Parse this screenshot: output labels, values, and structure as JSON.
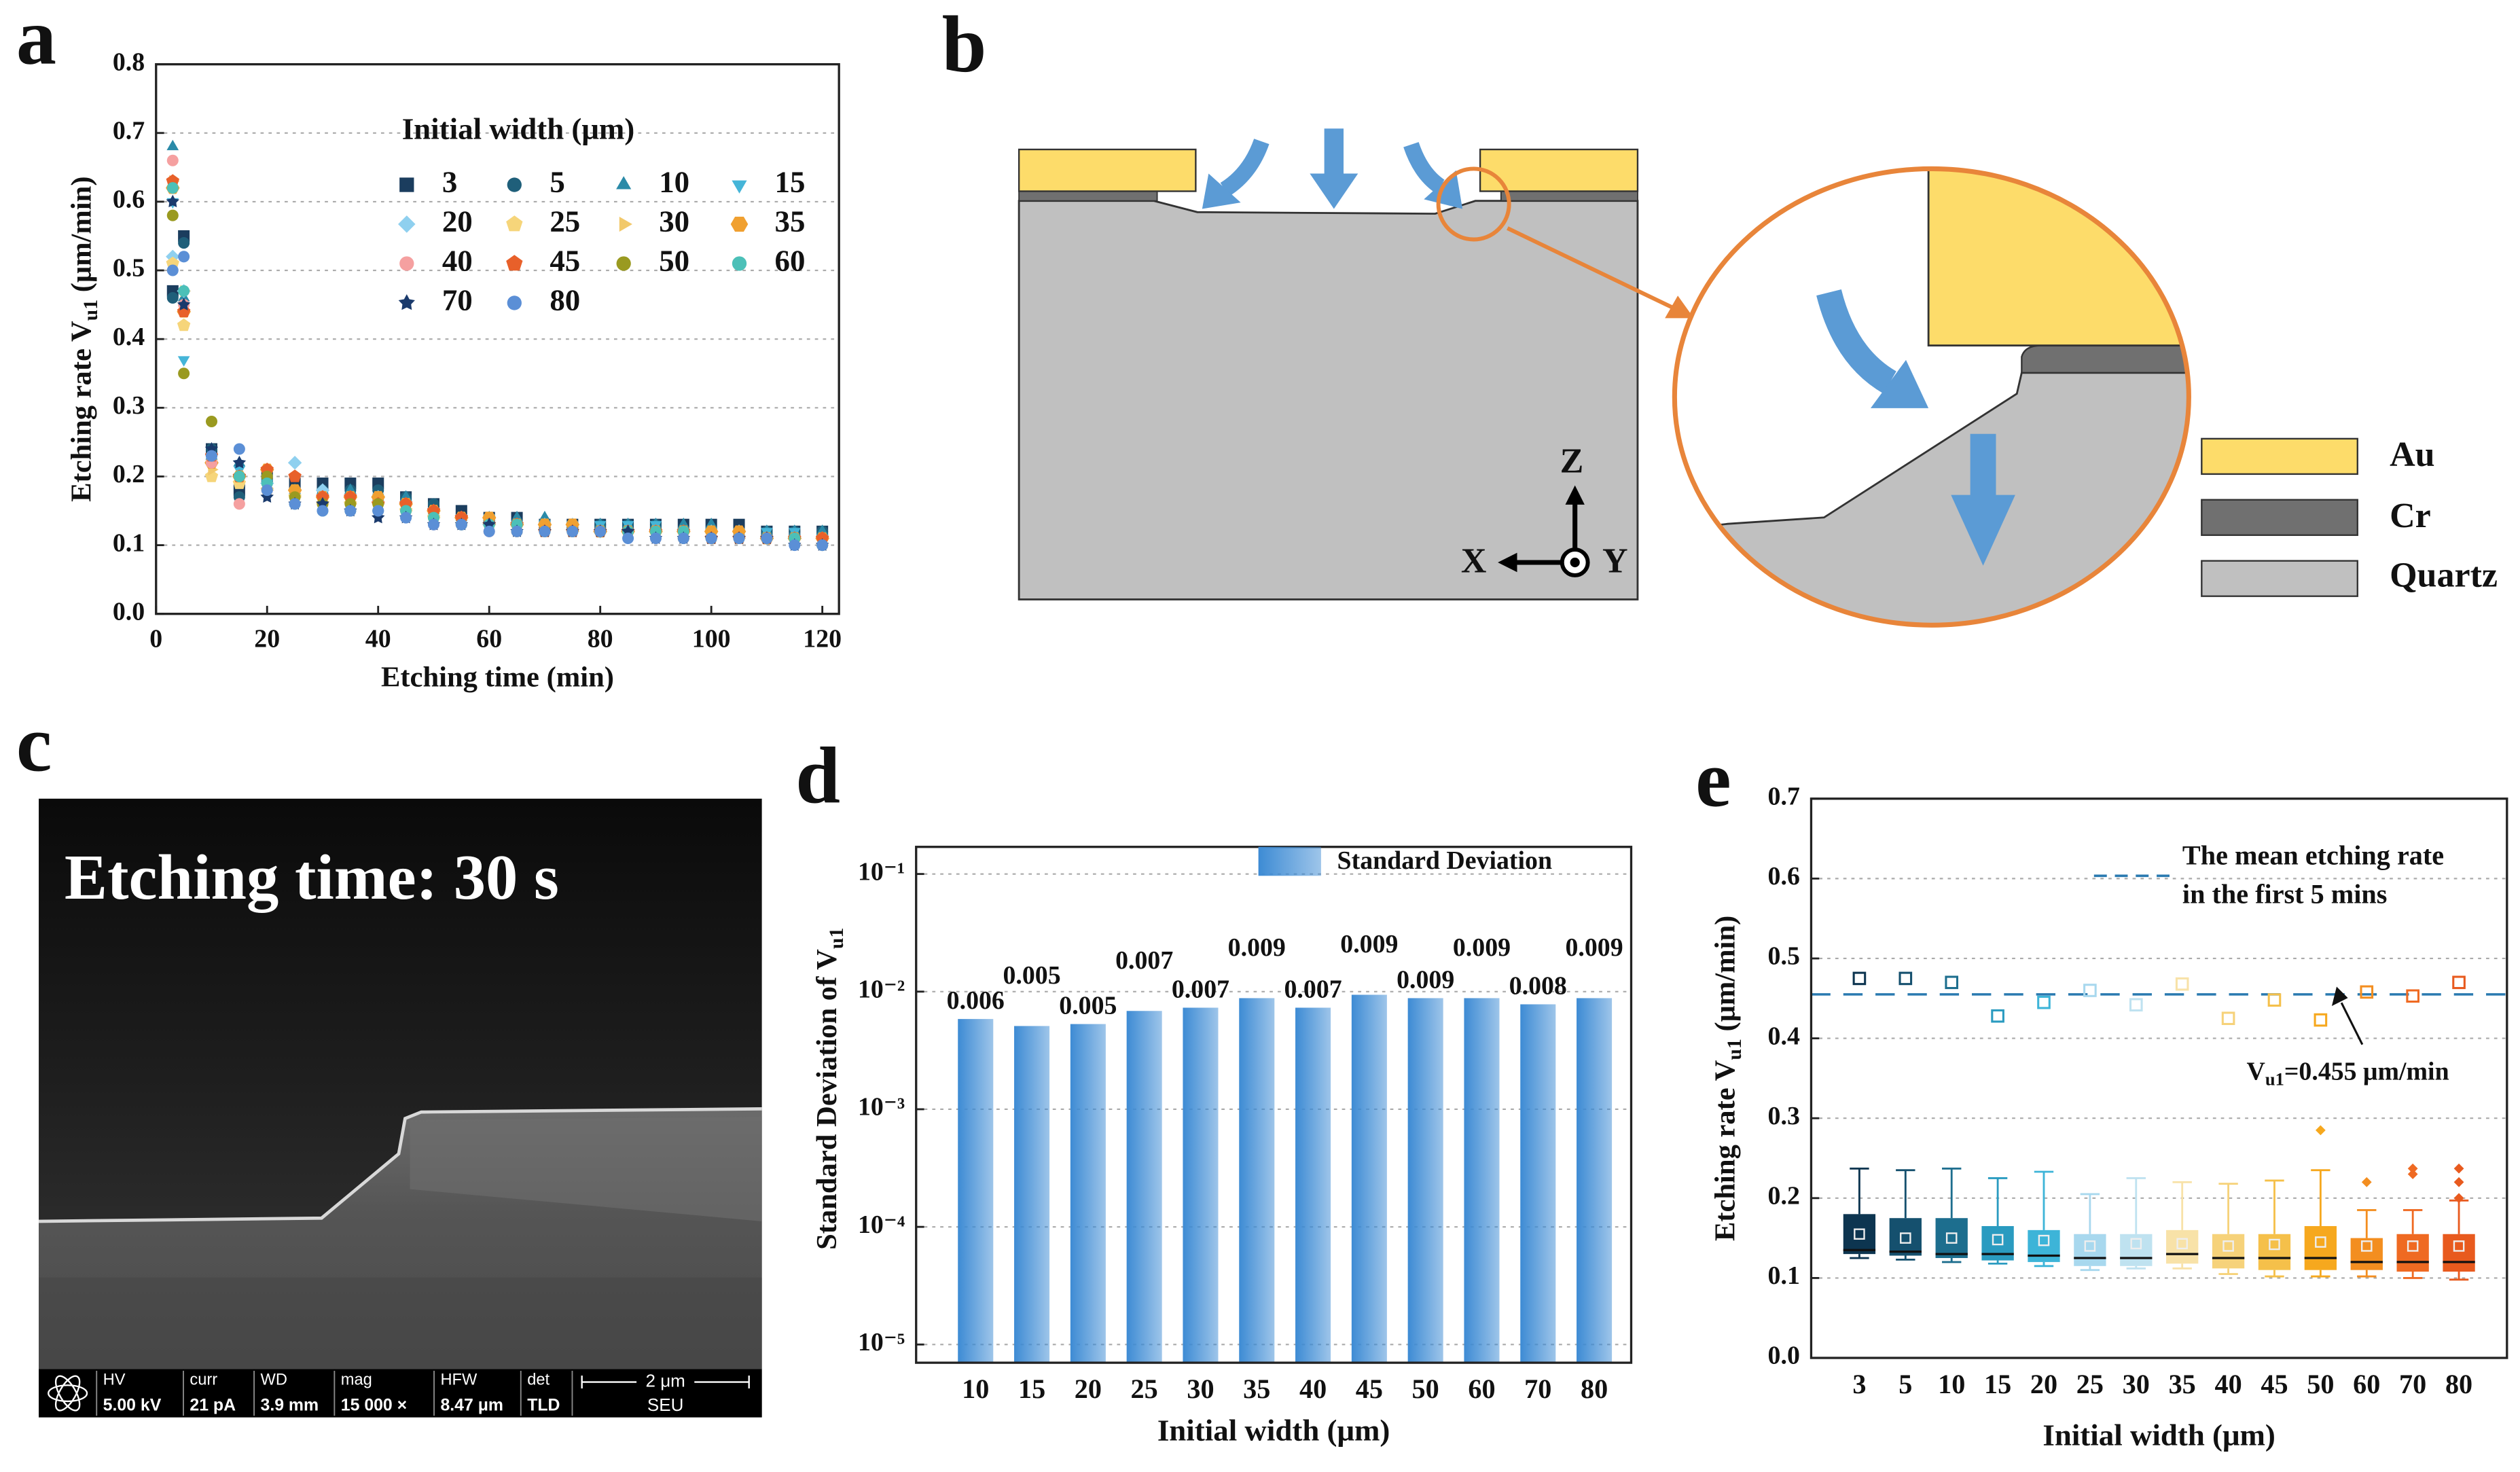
{
  "chart_data": [
    {
      "panel_label": "a",
      "type": "scatter",
      "xlabel": "Etching time (min)",
      "ylabel": [
        "Etching rate V",
        "u1",
        " (μm/min)"
      ],
      "legend_title": "Initial width (μm)",
      "x": [
        3,
        5,
        10,
        15,
        20,
        25,
        30,
        35,
        40,
        45,
        50,
        55,
        60,
        65,
        70,
        75,
        80,
        85,
        90,
        95,
        100,
        105,
        110,
        115,
        120
      ],
      "xlim": [
        0,
        123
      ],
      "xticks": [
        0,
        20,
        40,
        60,
        80,
        100,
        120
      ],
      "ylim": [
        0,
        0.8
      ],
      "yticks": [
        {
          "value": 0,
          "label": "0.0"
        },
        0.1,
        0.2,
        0.3,
        0.4,
        0.5,
        0.6,
        0.7,
        0.8
      ],
      "grid": true,
      "series": [
        {
          "name": "3",
          "color": "#1b3d5e",
          "marker": "square",
          "values": [
            0.47,
            0.55,
            0.24,
            0.18,
            0.2,
            0.19,
            0.19,
            0.19,
            0.19,
            0.17,
            0.16,
            0.15,
            0.14,
            0.14,
            0.13,
            0.13,
            0.13,
            0.13,
            0.13,
            0.13,
            0.13,
            0.13,
            0.12,
            0.12,
            0.12
          ]
        },
        {
          "name": "5",
          "color": "#1f5f7a",
          "marker": "circle",
          "values": [
            0.46,
            0.54,
            0.24,
            0.17,
            0.19,
            0.18,
            0.18,
            0.18,
            0.18,
            0.17,
            0.16,
            0.14,
            0.14,
            0.13,
            0.13,
            0.13,
            0.13,
            0.13,
            0.13,
            0.12,
            0.12,
            0.12,
            0.12,
            0.12,
            0.12
          ]
        },
        {
          "name": "10",
          "color": "#2a8aa8",
          "marker": "triangle-up",
          "values": [
            0.68,
            0.46,
            0.23,
            0.22,
            0.2,
            0.18,
            0.18,
            0.18,
            0.17,
            0.17,
            0.15,
            0.14,
            0.14,
            0.14,
            0.14,
            0.13,
            0.13,
            0.13,
            0.13,
            0.13,
            0.13,
            0.12,
            0.12,
            0.12,
            0.12
          ]
        },
        {
          "name": "15",
          "color": "#45b5d8",
          "marker": "triangle-down",
          "values": [
            0.6,
            0.37,
            0.22,
            0.21,
            0.19,
            0.17,
            0.17,
            0.17,
            0.17,
            0.16,
            0.15,
            0.14,
            0.14,
            0.13,
            0.13,
            0.13,
            0.13,
            0.13,
            0.13,
            0.12,
            0.12,
            0.12,
            0.12,
            0.12,
            0.11
          ]
        },
        {
          "name": "20",
          "color": "#8fd0ef",
          "marker": "diamond",
          "values": [
            0.52,
            0.47,
            0.22,
            0.2,
            0.19,
            0.22,
            0.18,
            0.17,
            0.17,
            0.16,
            0.15,
            0.14,
            0.13,
            0.13,
            0.13,
            0.13,
            0.12,
            0.12,
            0.12,
            0.12,
            0.12,
            0.12,
            0.11,
            0.11,
            0.11
          ]
        },
        {
          "name": "25",
          "color": "#f6d57a",
          "marker": "pentagon",
          "values": [
            0.51,
            0.42,
            0.2,
            0.19,
            0.18,
            0.17,
            0.16,
            0.16,
            0.16,
            0.15,
            0.14,
            0.14,
            0.13,
            0.13,
            0.12,
            0.12,
            0.12,
            0.12,
            0.12,
            0.12,
            0.11,
            0.11,
            0.11,
            0.11,
            0.11
          ]
        },
        {
          "name": "30",
          "color": "#f2c96b",
          "marker": "triangle-right",
          "values": [
            0.63,
            0.47,
            0.21,
            0.2,
            0.18,
            0.17,
            0.17,
            0.16,
            0.16,
            0.15,
            0.14,
            0.14,
            0.13,
            0.13,
            0.13,
            0.12,
            0.12,
            0.12,
            0.12,
            0.12,
            0.12,
            0.11,
            0.11,
            0.11,
            0.11
          ]
        },
        {
          "name": "35",
          "color": "#f0a030",
          "marker": "hexagon",
          "values": [
            0.62,
            0.44,
            0.22,
            0.2,
            0.21,
            0.18,
            0.17,
            0.17,
            0.17,
            0.16,
            0.15,
            0.14,
            0.14,
            0.13,
            0.13,
            0.13,
            0.12,
            0.12,
            0.12,
            0.12,
            0.12,
            0.12,
            0.11,
            0.11,
            0.11
          ]
        },
        {
          "name": "40",
          "color": "#f5a0a0",
          "marker": "circle",
          "values": [
            0.66,
            0.45,
            0.22,
            0.16,
            0.18,
            0.16,
            0.16,
            0.15,
            0.15,
            0.15,
            0.13,
            0.13,
            0.12,
            0.12,
            0.12,
            0.12,
            0.12,
            0.12,
            0.11,
            0.11,
            0.11,
            0.11,
            0.11,
            0.11,
            0.1
          ]
        },
        {
          "name": "45",
          "color": "#e8602a",
          "marker": "pentagon",
          "values": [
            0.63,
            0.44,
            0.23,
            0.2,
            0.21,
            0.2,
            0.17,
            0.17,
            0.16,
            0.16,
            0.15,
            0.14,
            0.13,
            0.13,
            0.12,
            0.12,
            0.12,
            0.12,
            0.12,
            0.12,
            0.11,
            0.11,
            0.11,
            0.11,
            0.11
          ]
        },
        {
          "name": "50",
          "color": "#9a9a20",
          "marker": "circle",
          "values": [
            0.58,
            0.35,
            0.28,
            0.2,
            0.2,
            0.17,
            0.16,
            0.16,
            0.16,
            0.15,
            0.14,
            0.13,
            0.13,
            0.12,
            0.12,
            0.12,
            0.12,
            0.12,
            0.12,
            0.11,
            0.11,
            0.11,
            0.11,
            0.11,
            0.1
          ]
        },
        {
          "name": "60",
          "color": "#4cc0b8",
          "marker": "circle",
          "values": [
            0.62,
            0.47,
            0.23,
            0.2,
            0.19,
            0.16,
            0.15,
            0.15,
            0.15,
            0.15,
            0.14,
            0.13,
            0.13,
            0.13,
            0.12,
            0.12,
            0.12,
            0.12,
            0.12,
            0.12,
            0.11,
            0.11,
            0.11,
            0.11,
            0.1
          ]
        },
        {
          "name": "70",
          "color": "#1a3a6c",
          "marker": "star",
          "values": [
            0.6,
            0.45,
            0.24,
            0.22,
            0.17,
            0.16,
            0.16,
            0.15,
            0.14,
            0.14,
            0.13,
            0.13,
            0.13,
            0.12,
            0.12,
            0.12,
            0.12,
            0.12,
            0.11,
            0.11,
            0.11,
            0.11,
            0.11,
            0.1,
            0.1
          ]
        },
        {
          "name": "80",
          "color": "#5b8fd6",
          "marker": "circle",
          "values": [
            0.5,
            0.52,
            0.23,
            0.24,
            0.18,
            0.16,
            0.15,
            0.15,
            0.15,
            0.14,
            0.13,
            0.13,
            0.12,
            0.12,
            0.12,
            0.12,
            0.12,
            0.11,
            0.11,
            0.11,
            0.11,
            0.11,
            0.11,
            0.1,
            0.1
          ]
        }
      ]
    },
    {
      "panel_label": "d",
      "type": "bar",
      "log_scale": true,
      "xlabel": "Initial width (μm)",
      "ylabel": [
        "Standard Deviation of  V",
        "u1"
      ],
      "legend": "Standard Deviation",
      "color": "#3d8bd4",
      "categories": [
        "10",
        "15",
        "20",
        "25",
        "30",
        "35",
        "40",
        "45",
        "50",
        "60",
        "70",
        "80"
      ],
      "values": [
        0.00585,
        0.0051,
        0.0053,
        0.00685,
        0.0073,
        0.0088,
        0.0073,
        0.0094,
        0.0088,
        0.0088,
        0.0078,
        0.0088
      ],
      "value_labels": [
        "0.006",
        "0.005",
        "0.005",
        "0.007",
        "0.007",
        "0.009",
        "0.007",
        "0.009",
        "0.009",
        "0.009",
        "0.008",
        "0.009"
      ],
      "ylim": [
        7e-06,
        0.17
      ],
      "yticks": [
        {
          "value": 1e-05,
          "label": "10⁻⁵"
        },
        {
          "value": 0.0001,
          "label": "10⁻⁴"
        },
        {
          "value": 0.001,
          "label": "10⁻³"
        },
        {
          "value": 0.01,
          "label": "10⁻²"
        },
        {
          "value": 0.1,
          "label": "10⁻¹"
        }
      ],
      "grid": true
    },
    {
      "panel_label": "e",
      "type": "box",
      "xlabel": "Initial width (μm)",
      "ylabel": [
        "Etching rate V",
        "u1",
        " (μm/min)"
      ],
      "categories": [
        "3",
        "5",
        "10",
        "15",
        "20",
        "25",
        "30",
        "35",
        "40",
        "45",
        "50",
        "60",
        "70",
        "80"
      ],
      "colors": [
        "#0d3550",
        "#15506e",
        "#1d6e8e",
        "#2a9bc0",
        "#3db4d8",
        "#a8d8ee",
        "#bfe2f0",
        "#f8e2a8",
        "#f6d27a",
        "#f5c04a",
        "#f6a81e",
        "#f38e20",
        "#ef6a22",
        "#e85a1e"
      ],
      "boxes": [
        {
          "whislo": 0.125,
          "q1": 0.13,
          "median": 0.135,
          "q3": 0.18,
          "whishi": 0.237,
          "mean": 0.155,
          "fliers": []
        },
        {
          "whislo": 0.123,
          "q1": 0.128,
          "median": 0.133,
          "q3": 0.175,
          "whishi": 0.235,
          "mean": 0.15,
          "fliers": []
        },
        {
          "whislo": 0.12,
          "q1": 0.125,
          "median": 0.13,
          "q3": 0.175,
          "whishi": 0.237,
          "mean": 0.15,
          "fliers": []
        },
        {
          "whislo": 0.118,
          "q1": 0.122,
          "median": 0.13,
          "q3": 0.165,
          "whishi": 0.225,
          "mean": 0.148,
          "fliers": []
        },
        {
          "whislo": 0.115,
          "q1": 0.12,
          "median": 0.128,
          "q3": 0.16,
          "whishi": 0.233,
          "mean": 0.147,
          "fliers": []
        },
        {
          "whislo": 0.11,
          "q1": 0.115,
          "median": 0.125,
          "q3": 0.155,
          "whishi": 0.205,
          "mean": 0.14,
          "fliers": []
        },
        {
          "whislo": 0.112,
          "q1": 0.115,
          "median": 0.125,
          "q3": 0.155,
          "whishi": 0.225,
          "mean": 0.143,
          "fliers": []
        },
        {
          "whislo": 0.112,
          "q1": 0.118,
          "median": 0.13,
          "q3": 0.16,
          "whishi": 0.22,
          "mean": 0.143,
          "fliers": []
        },
        {
          "whislo": 0.105,
          "q1": 0.112,
          "median": 0.125,
          "q3": 0.155,
          "whishi": 0.218,
          "mean": 0.14,
          "fliers": []
        },
        {
          "whislo": 0.102,
          "q1": 0.11,
          "median": 0.125,
          "q3": 0.155,
          "whishi": 0.222,
          "mean": 0.142,
          "fliers": []
        },
        {
          "whislo": 0.102,
          "q1": 0.11,
          "median": 0.125,
          "q3": 0.165,
          "whishi": 0.235,
          "mean": 0.145,
          "fliers": [
            0.285
          ]
        },
        {
          "whislo": 0.102,
          "q1": 0.11,
          "median": 0.12,
          "q3": 0.15,
          "whishi": 0.185,
          "mean": 0.14,
          "fliers": [
            0.22
          ]
        },
        {
          "whislo": 0.1,
          "q1": 0.108,
          "median": 0.12,
          "q3": 0.155,
          "whishi": 0.185,
          "mean": 0.14,
          "fliers": [
            0.23,
            0.237
          ]
        },
        {
          "whislo": 0.098,
          "q1": 0.108,
          "median": 0.12,
          "q3": 0.155,
          "whishi": 0.197,
          "mean": 0.14,
          "fliers": [
            0.2,
            0.22,
            0.237
          ]
        }
      ],
      "first5_means": [
        0.475,
        0.475,
        0.47,
        0.428,
        0.445,
        0.46,
        0.442,
        0.468,
        0.425,
        0.448,
        0.423,
        0.458,
        0.453,
        0.47
      ],
      "mean_line": {
        "name": [
          "The mean etching rate",
          "in the first 5 mins"
        ],
        "value": 0.455,
        "color": "#2a7ab0",
        "label": [
          "V",
          "u1",
          "=0.455 μm/min"
        ]
      },
      "ylim": [
        0,
        0.7
      ],
      "yticks": [
        {
          "value": 0,
          "label": "0.0"
        },
        0.1,
        0.2,
        0.3,
        0.4,
        0.5,
        0.6,
        0.7
      ],
      "grid": true
    }
  ],
  "diagram_b": {
    "panel_label": "b",
    "legend": [
      "Au",
      "Cr",
      "Quartz"
    ],
    "axes": [
      "Z",
      "X",
      "Y"
    ]
  },
  "image_c": {
    "panel_label": "c",
    "caption": "Etching time: 30 s",
    "info_labels": [
      "HV",
      "curr",
      "WD",
      "mag",
      "HFW",
      "det"
    ],
    "info_values": [
      "5.00 kV",
      "21 pA",
      "3.9 mm",
      "15 000 ×",
      "8.47 μm",
      "TLD"
    ],
    "scale": "2 μm",
    "org": "SEU"
  }
}
